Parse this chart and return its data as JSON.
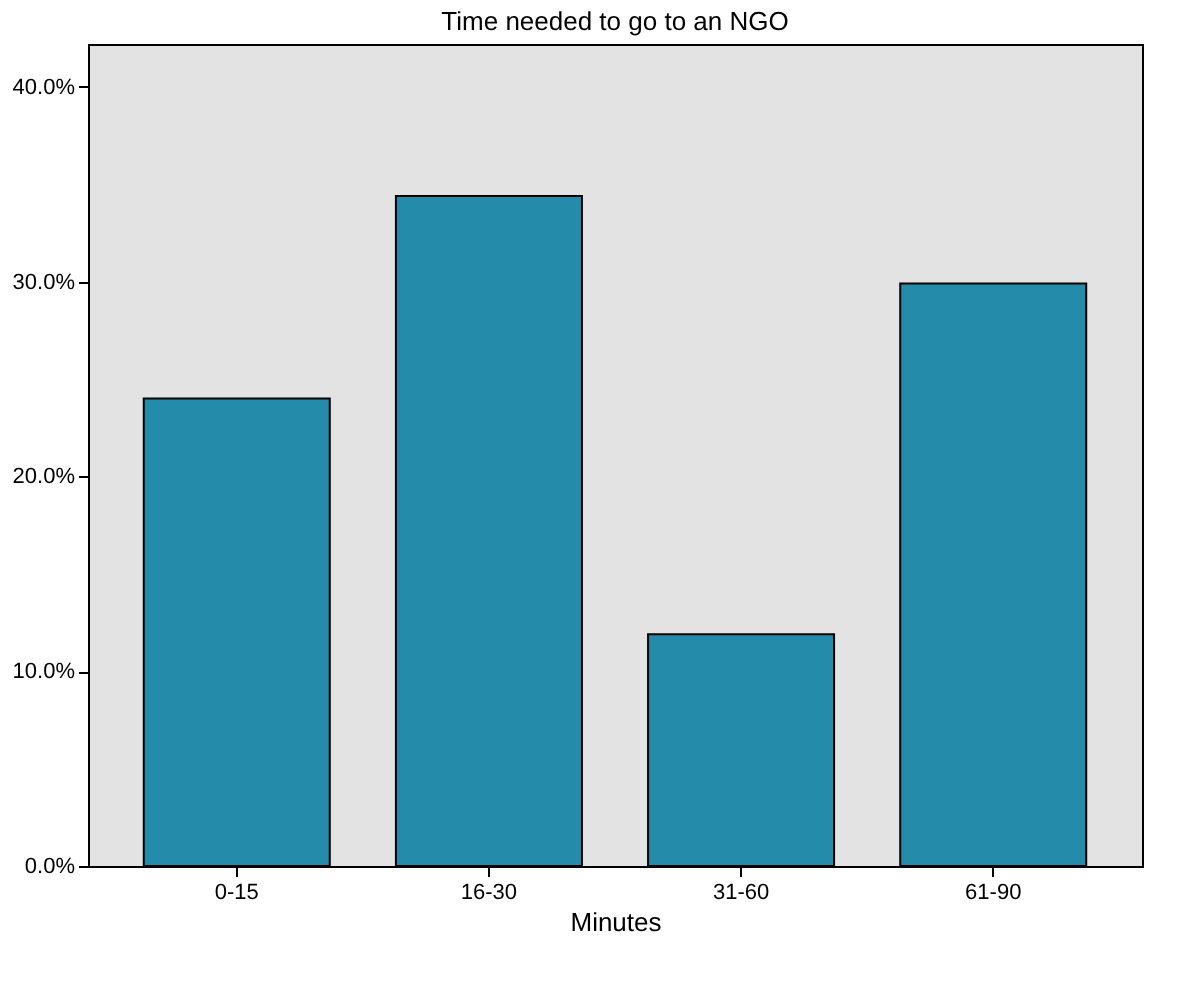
{
  "chart_data": {
    "type": "bar",
    "title": "Time needed to go to an NGO",
    "xlabel": "Minutes",
    "categories": [
      "0-15",
      "16-30",
      "31-60",
      "61-90"
    ],
    "values": [
      24.0,
      34.4,
      11.9,
      29.9
    ],
    "color": "#248bab",
    "ylim": [
      0,
      42.2
    ],
    "yticks": [
      {
        "value": 0,
        "label": "0.0%"
      },
      {
        "value": 10,
        "label": "10.0%"
      },
      {
        "value": 20,
        "label": "20.0%"
      },
      {
        "value": 30,
        "label": "30.0%"
      },
      {
        "value": 40,
        "label": "40.0%"
      }
    ],
    "grid": false
  }
}
